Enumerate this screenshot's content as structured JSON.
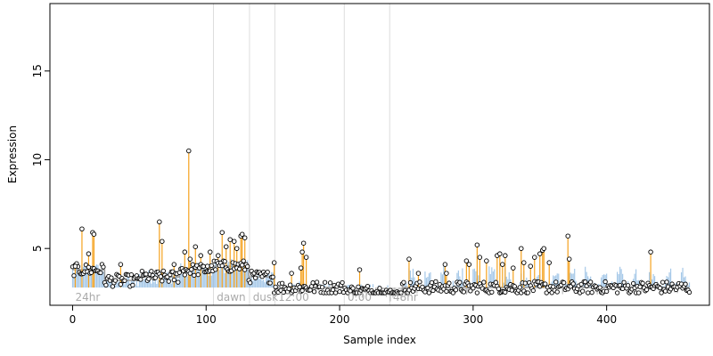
{
  "chart_data": {
    "type": "scatter",
    "title": "",
    "xlabel": "Sample index",
    "ylabel": "Expression",
    "xlim": [
      -17,
      477
    ],
    "ylim": [
      1.8,
      18.8
    ],
    "x_ticks": [
      0,
      100,
      200,
      300,
      400
    ],
    "y_ticks": [
      5,
      10,
      15
    ],
    "grid": false,
    "legend": "none",
    "baseline": 2.8,
    "colors": {
      "positive_stem": "#f5a21e",
      "negative_stem": "#aaaaaa",
      "profile": "#5b9bd5",
      "profile_fill": "#bdd7ee",
      "step": "#999999",
      "divider": "#dddddd",
      "point_stroke": "#000000",
      "point_fill": "#ffffff"
    },
    "segments": [
      {
        "label": "24hr",
        "start": 0,
        "end": 105
      },
      {
        "label": "dawn",
        "start": 106,
        "end": 132
      },
      {
        "label": "dusk",
        "start": 133,
        "end": 151
      },
      {
        "label": "12:00",
        "start": 152,
        "end": 203
      },
      {
        "label": "0:00",
        "start": 204,
        "end": 237
      },
      {
        "label": "48hr",
        "start": 238,
        "end": 462
      }
    ],
    "step_levels": [
      {
        "start": 0,
        "end": 24,
        "y": 3.8
      },
      {
        "start": 24,
        "end": 50,
        "y": 3.2
      },
      {
        "start": 50,
        "end": 80,
        "y": 3.4
      },
      {
        "start": 80,
        "end": 105,
        "y": 3.8
      },
      {
        "start": 105,
        "end": 132,
        "y": 4.0
      },
      {
        "start": 132,
        "end": 151,
        "y": 3.4
      },
      {
        "start": 151,
        "end": 205,
        "y": 2.8
      },
      {
        "start": 205,
        "end": 237,
        "y": 2.6
      },
      {
        "start": 237,
        "end": 247,
        "y": 2.4
      },
      {
        "start": 247,
        "end": 462,
        "y": 2.8
      }
    ],
    "highlight_points": [
      {
        "x": 2,
        "y": 4.0
      },
      {
        "x": 7,
        "y": 6.1
      },
      {
        "x": 12,
        "y": 4.7
      },
      {
        "x": 15,
        "y": 5.9
      },
      {
        "x": 16,
        "y": 5.8
      },
      {
        "x": 36,
        "y": 4.1
      },
      {
        "x": 65,
        "y": 6.5
      },
      {
        "x": 67,
        "y": 5.4
      },
      {
        "x": 76,
        "y": 4.1
      },
      {
        "x": 84,
        "y": 4.8
      },
      {
        "x": 87,
        "y": 10.5
      },
      {
        "x": 88,
        "y": 4.4
      },
      {
        "x": 92,
        "y": 5.1
      },
      {
        "x": 96,
        "y": 4.6
      },
      {
        "x": 101,
        "y": 4.0
      },
      {
        "x": 103,
        "y": 4.8
      },
      {
        "x": 109,
        "y": 4.6
      },
      {
        "x": 112,
        "y": 5.9
      },
      {
        "x": 115,
        "y": 5.1
      },
      {
        "x": 118,
        "y": 5.5
      },
      {
        "x": 121,
        "y": 5.4
      },
      {
        "x": 123,
        "y": 5.0
      },
      {
        "x": 126,
        "y": 5.7
      },
      {
        "x": 127,
        "y": 5.8
      },
      {
        "x": 129,
        "y": 5.6
      },
      {
        "x": 151,
        "y": 4.2
      },
      {
        "x": 164,
        "y": 3.6
      },
      {
        "x": 171,
        "y": 3.9
      },
      {
        "x": 172,
        "y": 4.8
      },
      {
        "x": 173,
        "y": 5.3
      },
      {
        "x": 175,
        "y": 4.5
      },
      {
        "x": 215,
        "y": 3.8
      },
      {
        "x": 252,
        "y": 4.4
      },
      {
        "x": 259,
        "y": 3.6
      },
      {
        "x": 279,
        "y": 4.1
      },
      {
        "x": 280,
        "y": 3.6
      },
      {
        "x": 295,
        "y": 4.3
      },
      {
        "x": 297,
        "y": 4.1
      },
      {
        "x": 303,
        "y": 5.2
      },
      {
        "x": 305,
        "y": 4.5
      },
      {
        "x": 310,
        "y": 4.3
      },
      {
        "x": 318,
        "y": 4.6
      },
      {
        "x": 320,
        "y": 4.7
      },
      {
        "x": 322,
        "y": 4.1
      },
      {
        "x": 324,
        "y": 4.6
      },
      {
        "x": 330,
        "y": 3.9
      },
      {
        "x": 336,
        "y": 5.0
      },
      {
        "x": 338,
        "y": 4.2
      },
      {
        "x": 343,
        "y": 4.0
      },
      {
        "x": 346,
        "y": 4.5
      },
      {
        "x": 350,
        "y": 4.7
      },
      {
        "x": 352,
        "y": 4.9
      },
      {
        "x": 353,
        "y": 5.0
      },
      {
        "x": 357,
        "y": 4.2
      },
      {
        "x": 371,
        "y": 5.7
      },
      {
        "x": 372,
        "y": 4.4
      },
      {
        "x": 433,
        "y": 4.8
      }
    ]
  }
}
